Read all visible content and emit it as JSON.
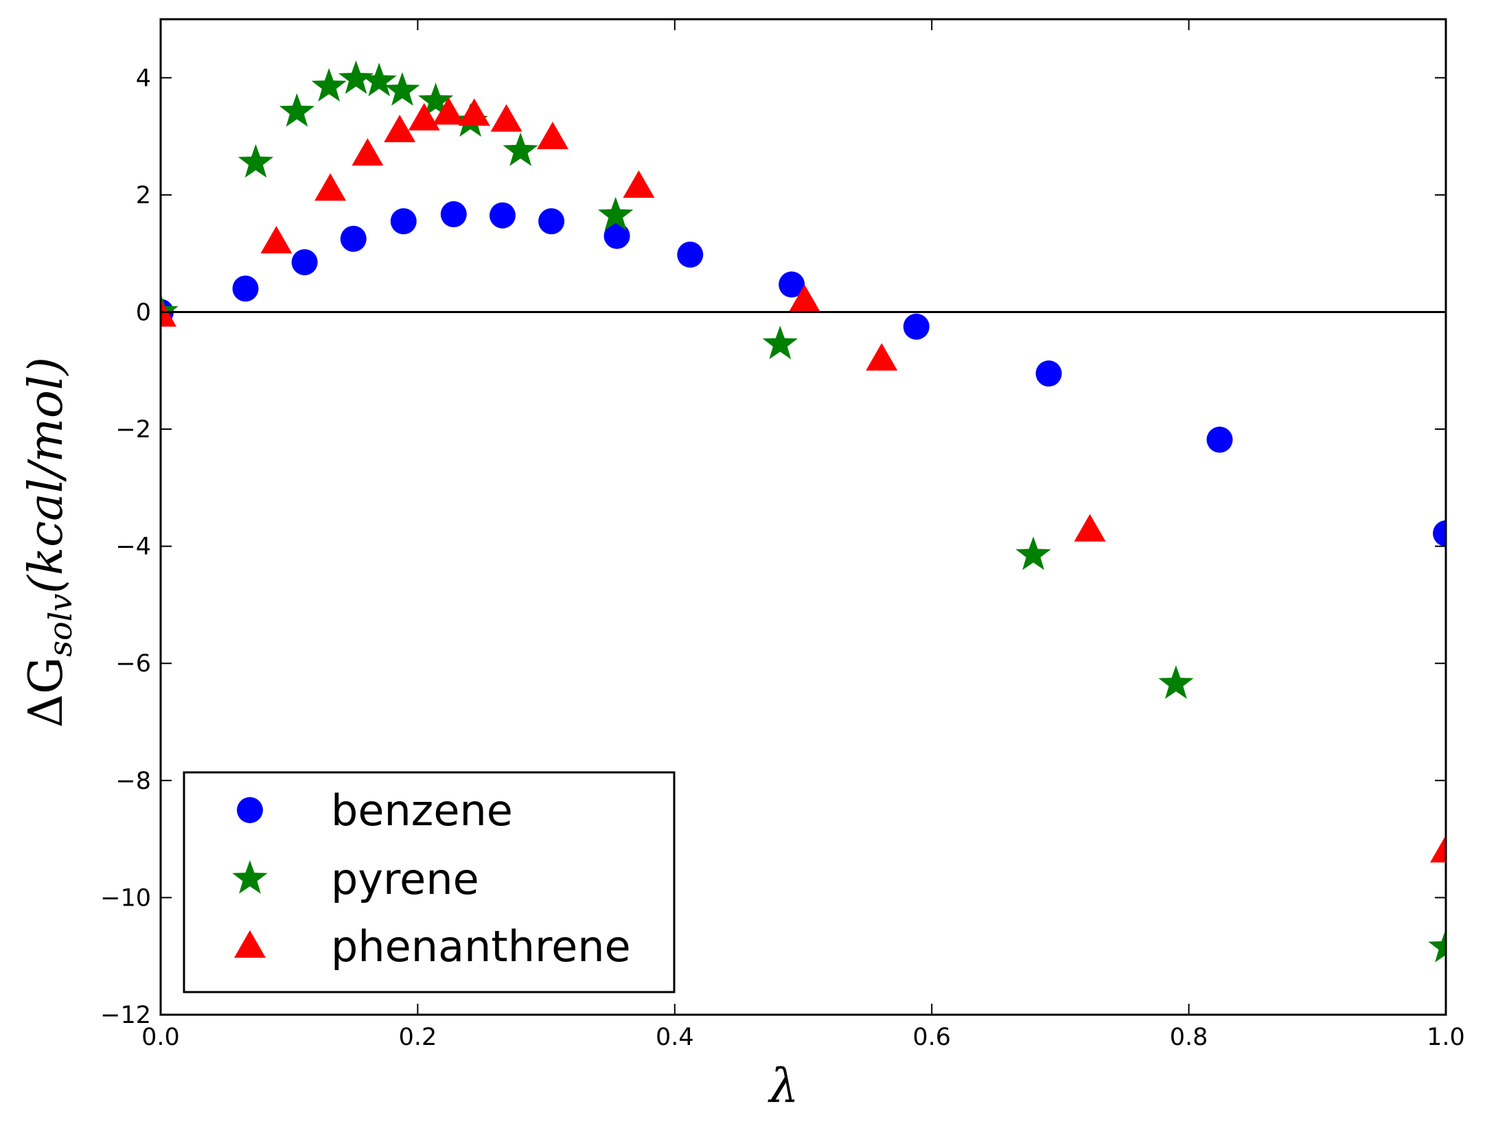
{
  "chart_data": {
    "type": "scatter",
    "xlabel": "λ",
    "ylabel": {
      "prefix": "ΔG",
      "subscript": "solv",
      "suffix": "(kcal/mol)"
    },
    "xlim": [
      0.0,
      1.0
    ],
    "ylim": [
      -12,
      5
    ],
    "xticks": [
      0.0,
      0.2,
      0.4,
      0.6,
      0.8,
      1.0
    ],
    "xtick_labels": [
      "0.0",
      "0.2",
      "0.4",
      "0.6",
      "0.8",
      "1.0"
    ],
    "yticks": [
      -12,
      -10,
      -8,
      -6,
      -4,
      -2,
      0,
      2,
      4
    ],
    "ytick_labels": [
      "−12",
      "−10",
      "−8",
      "−6",
      "−4",
      "−2",
      "0",
      "2",
      "4"
    ],
    "grid": false,
    "zero_line": true,
    "legend_placement": "lower-left",
    "series": [
      {
        "name": "benzene",
        "marker": "circle",
        "color": "#0000ff",
        "x": [
          0.0,
          0.066,
          0.112,
          0.15,
          0.189,
          0.228,
          0.266,
          0.304,
          0.355,
          0.412,
          0.491,
          0.588,
          0.691,
          0.824,
          1.0
        ],
        "y": [
          0.0,
          0.4,
          0.85,
          1.25,
          1.55,
          1.67,
          1.65,
          1.55,
          1.3,
          0.98,
          0.47,
          -0.25,
          -1.05,
          -2.18,
          -3.78
        ]
      },
      {
        "name": "pyrene",
        "marker": "star",
        "color": "#008000",
        "x": [
          0.0,
          0.074,
          0.106,
          0.131,
          0.152,
          0.17,
          0.188,
          0.214,
          0.241,
          0.28,
          0.354,
          0.482,
          0.679,
          0.79,
          1.0
        ],
        "y": [
          0.0,
          2.55,
          3.42,
          3.85,
          3.98,
          3.94,
          3.78,
          3.6,
          3.25,
          2.75,
          1.65,
          -0.55,
          -4.15,
          -6.35,
          -10.85
        ]
      },
      {
        "name": "phenanthrene",
        "marker": "triangle",
        "color": "#ff0000",
        "x": [
          0.0,
          0.09,
          0.132,
          0.161,
          0.186,
          0.205,
          0.224,
          0.244,
          0.269,
          0.305,
          0.372,
          0.501,
          0.561,
          0.723,
          1.0
        ],
        "y": [
          -0.05,
          1.2,
          2.1,
          2.7,
          3.1,
          3.3,
          3.4,
          3.38,
          3.28,
          2.98,
          2.15,
          0.2,
          -0.8,
          -3.72,
          -9.2
        ]
      }
    ]
  }
}
